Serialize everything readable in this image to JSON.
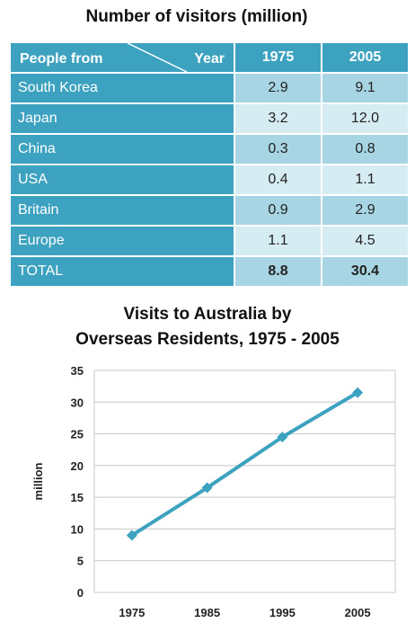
{
  "table": {
    "title": "Number of visitors (million)",
    "header": {
      "people_from": "People from",
      "year": "Year",
      "years": [
        "1975",
        "2005"
      ]
    },
    "rows": [
      {
        "label": "South Korea",
        "values": [
          "2.9",
          "9.1"
        ]
      },
      {
        "label": "Japan",
        "values": [
          "3.2",
          "12.0"
        ]
      },
      {
        "label": "China",
        "values": [
          "0.3",
          "0.8"
        ]
      },
      {
        "label": "USA",
        "values": [
          "0.4",
          "1.1"
        ]
      },
      {
        "label": "Britain",
        "values": [
          "0.9",
          "2.9"
        ]
      },
      {
        "label": "Europe",
        "values": [
          "1.1",
          "4.5"
        ]
      }
    ],
    "total": {
      "label": "TOTAL",
      "values": [
        "8.8",
        "30.4"
      ]
    }
  },
  "chart_data": {
    "type": "line",
    "title_line1": "Visits to Australia by",
    "title_line2": "Overseas Residents, 1975 - 2005",
    "xlabel": "",
    "ylabel": "million",
    "categories": [
      "1975",
      "1985",
      "1995",
      "2005"
    ],
    "series": [
      {
        "values": [
          9,
          16.5,
          24.5,
          31.5
        ],
        "color": "#3ca2bf"
      }
    ],
    "ylim": [
      0,
      35
    ],
    "yticks": [
      0,
      5,
      10,
      15,
      20,
      25,
      30,
      35
    ],
    "grid": true,
    "legend": "none"
  }
}
